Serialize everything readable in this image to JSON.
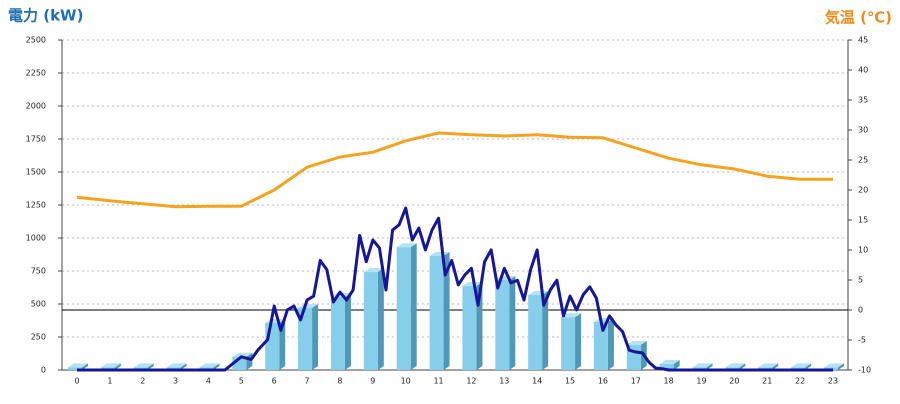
{
  "chart_data": {
    "type": "bar",
    "title_left": "電力 (kW)",
    "title_right": "気温 (℃)",
    "categories": [
      "0",
      "1",
      "2",
      "3",
      "4",
      "5",
      "6",
      "7",
      "8",
      "9",
      "10",
      "11",
      "12",
      "13",
      "14",
      "15",
      "16",
      "17",
      "18",
      "19",
      "20",
      "21",
      "22",
      "23"
    ],
    "ylim": [
      0,
      2500
    ],
    "yticks": [
      0,
      250,
      500,
      750,
      1000,
      1250,
      1500,
      1750,
      2000,
      2250,
      2500
    ],
    "y2lim": [
      -10,
      45
    ],
    "y2ticks": [
      -10,
      -5,
      0,
      5,
      10,
      15,
      20,
      25,
      30,
      35,
      40,
      45
    ],
    "grid": true,
    "series": [
      {
        "type": "bar",
        "color": "#87ceeb",
        "values": [
          20,
          20,
          20,
          20,
          20,
          100,
          356,
          470,
          553,
          742,
          930,
          864,
          636,
          682,
          568,
          400,
          364,
          190,
          45,
          20,
          20,
          20,
          20,
          20
        ]
      },
      {
        "type": "line",
        "axis": "y2",
        "color": "#f5a31e",
        "values": [
          18.8,
          18.2,
          17.7,
          17.2,
          17.3,
          17.3,
          20,
          23.8,
          25.5,
          26.3,
          28.2,
          29.5,
          29.2,
          29,
          29.2,
          28.8,
          28.7,
          27,
          25.3,
          24.2,
          23.5,
          22.3,
          21.8,
          21.8
        ]
      },
      {
        "type": "line",
        "color": "#16169a",
        "x": [
          0,
          4.5,
          5,
          5.3,
          5.5,
          5.8,
          6,
          6.2,
          6.4,
          6.6,
          6.8,
          7,
          7.2,
          7.4,
          7.6,
          7.8,
          8,
          8.2,
          8.4,
          8.6,
          8.8,
          9,
          9.2,
          9.4,
          9.6,
          9.8,
          10,
          10.2,
          10.4,
          10.6,
          10.8,
          11,
          11.2,
          11.4,
          11.6,
          11.8,
          12,
          12.2,
          12.4,
          12.6,
          12.8,
          13,
          13.2,
          13.4,
          13.6,
          13.8,
          14,
          14.2,
          14.4,
          14.6,
          14.8,
          15,
          15.2,
          15.4,
          15.6,
          15.8,
          16,
          16.2,
          16.4,
          16.6,
          16.8,
          17,
          17.2,
          17.4,
          17.6,
          17.8,
          18,
          23
        ],
        "values": [
          0,
          0,
          100,
          80,
          150,
          230,
          485,
          300,
          455,
          485,
          380,
          530,
          560,
          830,
          760,
          515,
          590,
          530,
          606,
          1020,
          820,
          985,
          925,
          606,
          1060,
          1100,
          1227,
          985,
          1075,
          910,
          1060,
          1150,
          720,
          830,
          645,
          720,
          770,
          490,
          820,
          910,
          620,
          770,
          660,
          680,
          530,
          760,
          910,
          490,
          606,
          680,
          410,
          560,
          455,
          570,
          630,
          545,
          300,
          410,
          340,
          290,
          150,
          136,
          130,
          60,
          15,
          10,
          0,
          0
        ]
      }
    ]
  }
}
